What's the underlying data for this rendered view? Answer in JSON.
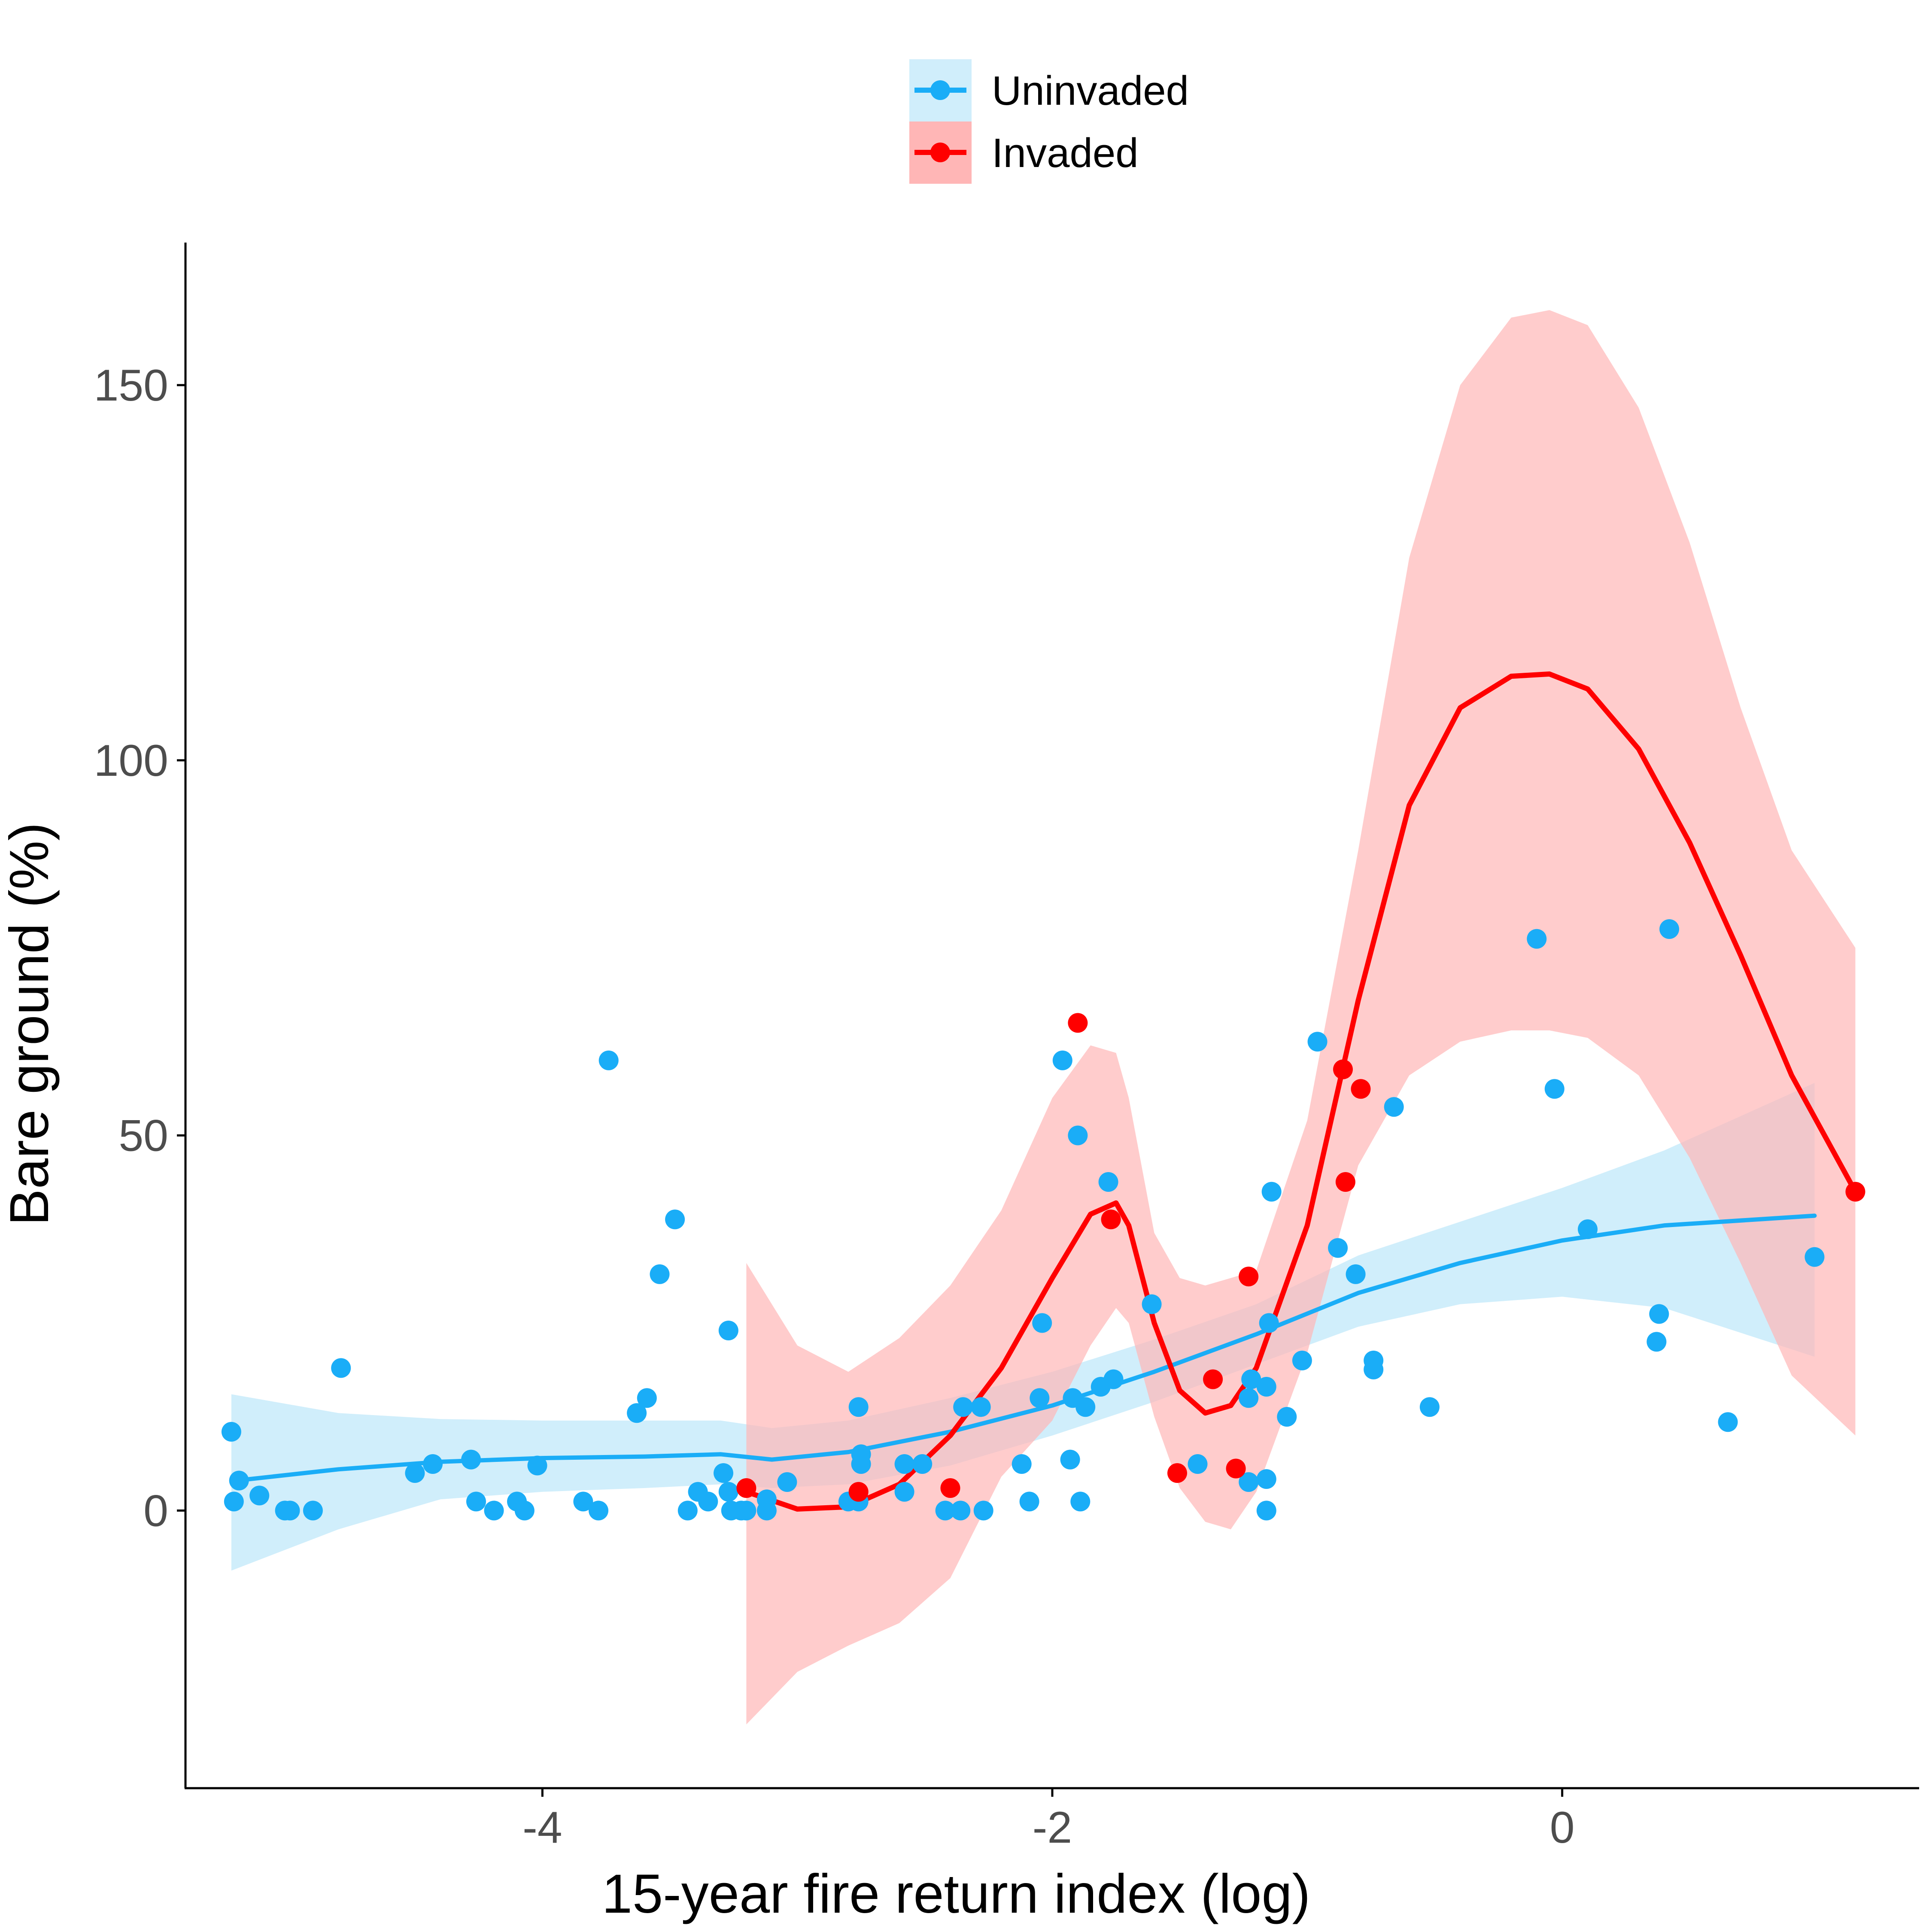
{
  "chart_data": {
    "type": "scatter",
    "title": "",
    "xlabel": "15-year fire return index (log)",
    "ylabel": "Bare ground (%)",
    "xlim": [
      -5.4,
      1.4
    ],
    "ylim": [
      -37,
      169
    ],
    "xticks": [
      -4,
      -2,
      0
    ],
    "xtick_labels": [
      "-4",
      "-2",
      "0"
    ],
    "yticks": [
      0,
      50,
      100,
      150
    ],
    "ytick_labels": [
      "0",
      "50",
      "100",
      "150"
    ],
    "grid": false,
    "legend_position": "top",
    "series": [
      {
        "name": "Uninvaded",
        "color": "#1AADF7",
        "band_color": "#D0EEFB",
        "points": [
          [
            -5.22,
            10.5
          ],
          [
            -5.21,
            1.2
          ],
          [
            -5.19,
            4.0
          ],
          [
            -5.11,
            2.0
          ],
          [
            -5.01,
            0
          ],
          [
            -4.99,
            0
          ],
          [
            -4.9,
            0
          ],
          [
            -4.79,
            19.0
          ],
          [
            -4.5,
            5.0
          ],
          [
            -4.43,
            6.2
          ],
          [
            -4.28,
            6.8
          ],
          [
            -4.26,
            1.2
          ],
          [
            -4.19,
            0
          ],
          [
            -4.1,
            1.2
          ],
          [
            -4.07,
            0
          ],
          [
            -4.02,
            6.0
          ],
          [
            -3.84,
            1.2
          ],
          [
            -3.78,
            0
          ],
          [
            -3.74,
            60.0
          ],
          [
            -3.63,
            13.0
          ],
          [
            -3.59,
            15.0
          ],
          [
            -3.54,
            31.5
          ],
          [
            -3.48,
            38.8
          ],
          [
            -3.43,
            0
          ],
          [
            -3.39,
            2.5
          ],
          [
            -3.35,
            1.2
          ],
          [
            -3.29,
            5.0
          ],
          [
            -3.27,
            24.0
          ],
          [
            -3.27,
            2.5
          ],
          [
            -3.26,
            0
          ],
          [
            -3.22,
            0
          ],
          [
            -3.2,
            0
          ],
          [
            -3.12,
            0
          ],
          [
            -3.12,
            1.5
          ],
          [
            -3.04,
            3.8
          ],
          [
            -2.8,
            1.2
          ],
          [
            -2.76,
            1.2
          ],
          [
            -2.76,
            13.8
          ],
          [
            -2.75,
            6.2
          ],
          [
            -2.75,
            7.5
          ],
          [
            -2.58,
            2.5
          ],
          [
            -2.58,
            6.2
          ],
          [
            -2.51,
            6.2
          ],
          [
            -2.42,
            0
          ],
          [
            -2.36,
            0
          ],
          [
            -2.35,
            13.8
          ],
          [
            -2.28,
            13.8
          ],
          [
            -2.27,
            0
          ],
          [
            -2.12,
            6.2
          ],
          [
            -2.09,
            1.2
          ],
          [
            -2.05,
            15.0
          ],
          [
            -2.04,
            25.0
          ],
          [
            -1.96,
            60.0
          ],
          [
            -1.93,
            6.8
          ],
          [
            -1.92,
            15.0
          ],
          [
            -1.9,
            50.0
          ],
          [
            -1.89,
            1.2
          ],
          [
            -1.87,
            13.8
          ],
          [
            -1.81,
            16.5
          ],
          [
            -1.78,
            43.8
          ],
          [
            -1.76,
            17.5
          ],
          [
            -1.61,
            27.5
          ],
          [
            -1.43,
            6.2
          ],
          [
            -1.23,
            3.8
          ],
          [
            -1.23,
            15.0
          ],
          [
            -1.22,
            17.5
          ],
          [
            -1.16,
            4.2
          ],
          [
            -1.16,
            0
          ],
          [
            -1.16,
            16.5
          ],
          [
            -1.15,
            25.0
          ],
          [
            -1.14,
            42.5
          ],
          [
            -1.08,
            12.5
          ],
          [
            -1.02,
            20.0
          ],
          [
            -0.96,
            62.5
          ],
          [
            -0.88,
            35.0
          ],
          [
            -0.81,
            31.5
          ],
          [
            -0.74,
            20.0
          ],
          [
            -0.74,
            18.8
          ],
          [
            -0.66,
            53.8
          ],
          [
            -0.52,
            13.8
          ],
          [
            -0.1,
            76.2
          ],
          [
            -0.03,
            56.2
          ],
          [
            0.1,
            37.5
          ],
          [
            0.37,
            22.5
          ],
          [
            0.38,
            26.2
          ],
          [
            0.42,
            77.5
          ],
          [
            0.65,
            11.8
          ],
          [
            0.99,
            33.8
          ]
        ],
        "fit": [
          [
            -5.2,
            4.0
          ],
          [
            -4.8,
            5.5
          ],
          [
            -4.4,
            6.5
          ],
          [
            -4.0,
            7.0
          ],
          [
            -3.6,
            7.2
          ],
          [
            -3.3,
            7.5
          ],
          [
            -3.1,
            6.8
          ],
          [
            -2.8,
            7.8
          ],
          [
            -2.4,
            10.5
          ],
          [
            -2.0,
            14.0
          ],
          [
            -1.6,
            18.5
          ],
          [
            -1.2,
            23.5
          ],
          [
            -0.8,
            29.0
          ],
          [
            -0.4,
            33.0
          ],
          [
            0.0,
            36.0
          ],
          [
            0.4,
            38.0
          ],
          [
            0.99,
            39.3
          ]
        ],
        "band": [
          [
            -5.22,
            15.5,
            -8.0
          ],
          [
            -4.8,
            13.0,
            -2.5
          ],
          [
            -4.4,
            12.2,
            1.5
          ],
          [
            -4.0,
            12.0,
            2.5
          ],
          [
            -3.6,
            12.0,
            3.0
          ],
          [
            -3.3,
            12.0,
            3.5
          ],
          [
            -3.1,
            11.0,
            3.0
          ],
          [
            -2.8,
            12.0,
            3.5
          ],
          [
            -2.4,
            15.0,
            6.0
          ],
          [
            -2.0,
            18.5,
            10.0
          ],
          [
            -1.6,
            22.8,
            14.5
          ],
          [
            -1.2,
            27.5,
            19.5
          ],
          [
            -0.8,
            34.0,
            24.5
          ],
          [
            -0.4,
            38.5,
            27.5
          ],
          [
            0.0,
            43.0,
            28.5
          ],
          [
            0.4,
            48.0,
            27.0
          ],
          [
            0.99,
            57.0,
            20.5
          ]
        ]
      },
      {
        "name": "Invaded",
        "color": "#FF0000",
        "band_color": "#FFB6B6",
        "points": [
          [
            -3.2,
            3.0
          ],
          [
            -2.76,
            2.5
          ],
          [
            -2.4,
            3.0
          ],
          [
            -1.9,
            65.0
          ],
          [
            -1.77,
            38.8
          ],
          [
            -1.51,
            5.0
          ],
          [
            -1.37,
            17.5
          ],
          [
            -1.28,
            5.6
          ],
          [
            -1.23,
            31.2
          ],
          [
            -0.86,
            58.8
          ],
          [
            -0.85,
            43.8
          ],
          [
            -0.79,
            56.2
          ],
          [
            1.15,
            42.5
          ]
        ],
        "fit": [
          [
            -3.2,
            2.5
          ],
          [
            -3.0,
            0.2
          ],
          [
            -2.8,
            0.5
          ],
          [
            -2.6,
            3.5
          ],
          [
            -2.4,
            10.0
          ],
          [
            -2.2,
            19.0
          ],
          [
            -2.0,
            31.0
          ],
          [
            -1.85,
            39.5
          ],
          [
            -1.75,
            41.0
          ],
          [
            -1.7,
            38.0
          ],
          [
            -1.6,
            25.0
          ],
          [
            -1.5,
            16.0
          ],
          [
            -1.4,
            13.0
          ],
          [
            -1.3,
            14.0
          ],
          [
            -1.2,
            19.0
          ],
          [
            -1.0,
            38.0
          ],
          [
            -0.8,
            68.0
          ],
          [
            -0.6,
            94.0
          ],
          [
            -0.4,
            107.0
          ],
          [
            -0.2,
            111.2
          ],
          [
            -0.05,
            111.5
          ],
          [
            0.1,
            109.5
          ],
          [
            0.3,
            101.5
          ],
          [
            0.5,
            89.0
          ],
          [
            0.7,
            74.0
          ],
          [
            0.9,
            58.0
          ],
          [
            1.15,
            42.5
          ]
        ],
        "band": [
          [
            -3.2,
            33.0,
            -28.5
          ],
          [
            -3.0,
            22.0,
            -21.5
          ],
          [
            -2.8,
            18.5,
            -18.0
          ],
          [
            -2.6,
            23.0,
            -15.0
          ],
          [
            -2.4,
            30.0,
            -9.0
          ],
          [
            -2.2,
            40.0,
            4.5
          ],
          [
            -2.0,
            55.0,
            12.0
          ],
          [
            -1.85,
            62.0,
            22.0
          ],
          [
            -1.75,
            61.0,
            27.0
          ],
          [
            -1.7,
            55.0,
            25.0
          ],
          [
            -1.6,
            37.0,
            12.5
          ],
          [
            -1.5,
            31.0,
            3.0
          ],
          [
            -1.4,
            30.0,
            -1.5
          ],
          [
            -1.3,
            31.0,
            -2.5
          ],
          [
            -1.2,
            32.0,
            2.5
          ],
          [
            -1.0,
            52.0,
            21.0
          ],
          [
            -0.8,
            88.0,
            46.0
          ],
          [
            -0.6,
            127.0,
            58.0
          ],
          [
            -0.4,
            150.0,
            62.5
          ],
          [
            -0.2,
            159.0,
            64.0
          ],
          [
            -0.05,
            160.0,
            64.0
          ],
          [
            0.1,
            158.0,
            63.0
          ],
          [
            0.3,
            147.0,
            58.0
          ],
          [
            0.5,
            129.0,
            47.0
          ],
          [
            0.7,
            107.0,
            33.0
          ],
          [
            0.9,
            88.0,
            18.0
          ],
          [
            1.15,
            75.0,
            10.0
          ]
        ]
      }
    ]
  },
  "legend": {
    "items": [
      {
        "label": "Uninvaded",
        "color": "#1AADF7",
        "band_color": "#D0EEFB"
      },
      {
        "label": "Invaded",
        "color": "#FF0000",
        "band_color": "#FFB6B6"
      }
    ]
  }
}
